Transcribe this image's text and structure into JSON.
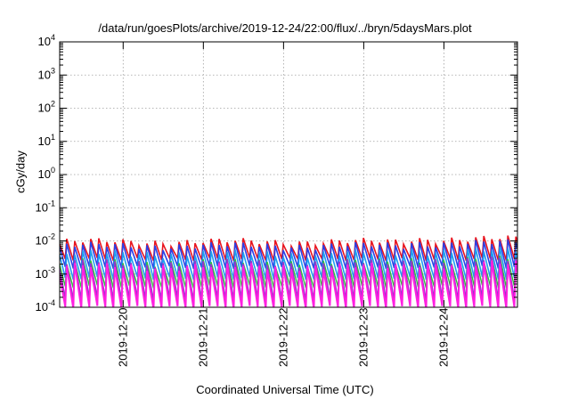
{
  "chart_data": {
    "type": "line",
    "title": "/data/run/goesPlots/archive/2019-12-24/22:00/flux/../bryn/5daysMars.plot",
    "xlabel": "Coordinated Universal Time (UTC)",
    "ylabel": "cGy/day",
    "y_scale": "log",
    "ylim": [
      0.0001,
      10000
    ],
    "y_ticks": [
      {
        "value": 0.0001,
        "base": "10",
        "exp": "-4"
      },
      {
        "value": 0.001,
        "base": "10",
        "exp": "-3"
      },
      {
        "value": 0.01,
        "base": "10",
        "exp": "-2"
      },
      {
        "value": 0.1,
        "base": "10",
        "exp": "-1"
      },
      {
        "value": 1,
        "base": "10",
        "exp": "0"
      },
      {
        "value": 10,
        "base": "10",
        "exp": "1"
      },
      {
        "value": 100,
        "base": "10",
        "exp": "2"
      },
      {
        "value": 1000,
        "base": "10",
        "exp": "3"
      },
      {
        "value": 10000,
        "base": "10",
        "exp": "4"
      }
    ],
    "xlim": [
      "2019-12-19T05:00",
      "2019-12-24T22:00"
    ],
    "x_ticks": [
      {
        "value": "2019-12-20T00:00",
        "label": "2019-12-20"
      },
      {
        "value": "2019-12-21T00:00",
        "label": "2019-12-21"
      },
      {
        "value": "2019-12-22T00:00",
        "label": "2019-12-22"
      },
      {
        "value": "2019-12-23T00:00",
        "label": "2019-12-23"
      },
      {
        "value": "2019-12-24T00:00",
        "label": "2019-12-24"
      }
    ],
    "grid": true,
    "legend": "none",
    "teeth_per_day": 10,
    "series": [
      {
        "color": "#e8141e",
        "peak": 0.0095,
        "trough": 0.0028,
        "width": 1.6
      },
      {
        "color": "#2a40e6",
        "peak": 0.0072,
        "trough": 0.0016,
        "width": 1.6
      },
      {
        "color": "#1e9ef0",
        "peak": 0.0042,
        "trough": 0.00075,
        "width": 1.6
      },
      {
        "color": "#2ebf3a",
        "peak": 0.0023,
        "trough": 0.00042,
        "width": 1.4
      },
      {
        "color": "#9932cc",
        "peak": 0.0022,
        "trough": 0.00018,
        "width": 1.6
      },
      {
        "color": "#ff20e0",
        "peak": 0.0017,
        "trough": 0.0001,
        "width": 2.0
      }
    ]
  }
}
